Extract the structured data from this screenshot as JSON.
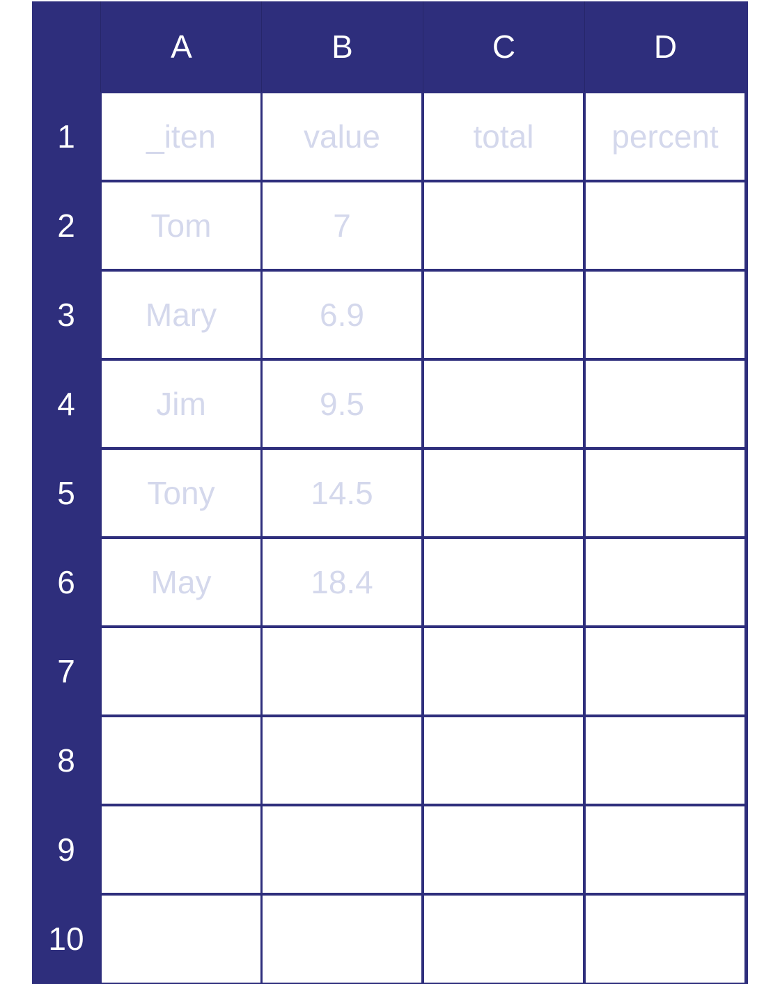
{
  "spreadsheet": {
    "columns": [
      "A",
      "B",
      "C",
      "D"
    ],
    "rows": [
      "1",
      "2",
      "3",
      "4",
      "5",
      "6",
      "7",
      "8",
      "9",
      "10"
    ],
    "cells": [
      [
        "_iten",
        "value",
        "total",
        "percent"
      ],
      [
        "Tom",
        "7",
        "",
        ""
      ],
      [
        "Mary",
        "6.9",
        "",
        ""
      ],
      [
        "Jim",
        "9.5",
        "",
        ""
      ],
      [
        "Tony",
        "14.5",
        "",
        ""
      ],
      [
        "May",
        "18.4",
        "",
        ""
      ],
      [
        "",
        "",
        "",
        ""
      ],
      [
        "",
        "",
        "",
        ""
      ],
      [
        "",
        "",
        "",
        ""
      ],
      [
        "",
        "",
        "",
        ""
      ]
    ]
  },
  "colors": {
    "header_background": "#2e2e7c",
    "grid_line": "#2e2e7c",
    "header_text": "#ffffff",
    "cell_text": "#d4d8ec",
    "cell_background": "#ffffff"
  }
}
